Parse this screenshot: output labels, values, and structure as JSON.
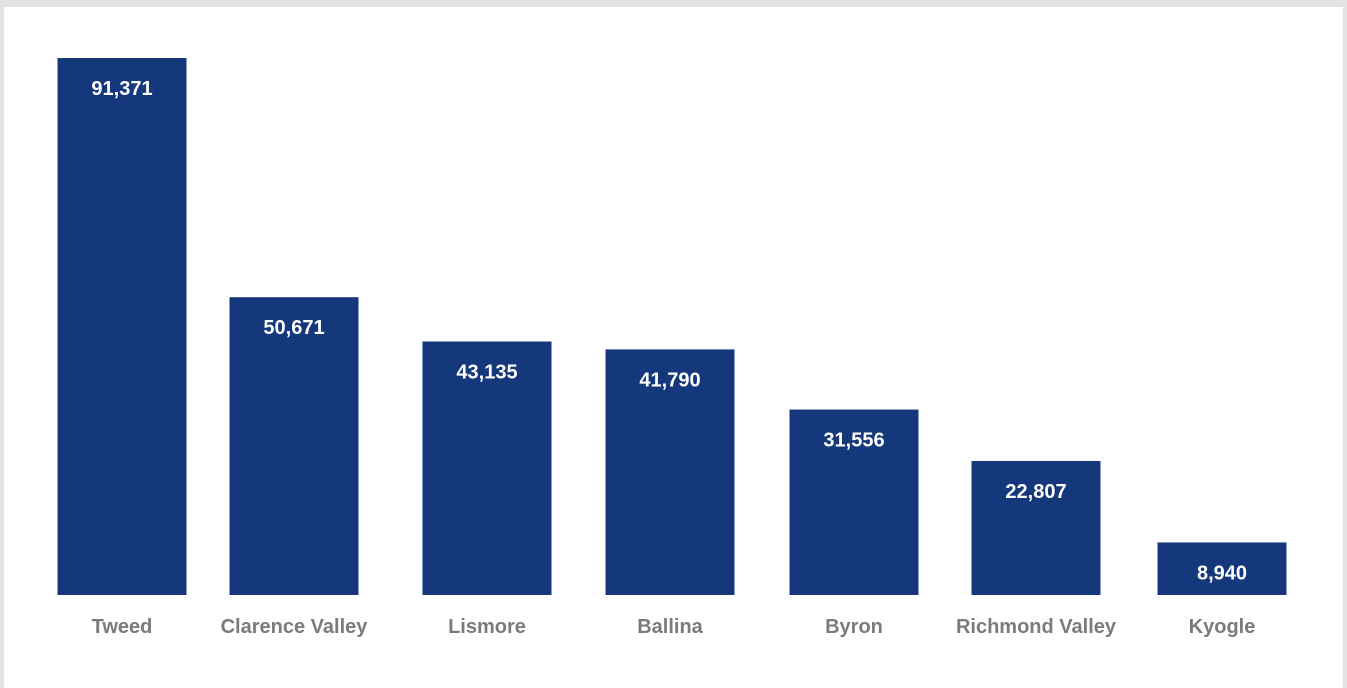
{
  "chart_data": {
    "type": "bar",
    "title": "",
    "xlabel": "",
    "ylabel": "",
    "categories": [
      "Tweed",
      "Clarence Valley",
      "Lismore",
      "Ballina",
      "Byron",
      "Richmond Valley",
      "Kyogle"
    ],
    "values": [
      91371,
      50671,
      43135,
      41790,
      31556,
      22807,
      8940
    ],
    "value_labels": [
      "91,371",
      "50,671",
      "43,135",
      "41,790",
      "31,556",
      "22,807",
      "8,940"
    ],
    "ylim": [
      0,
      91371
    ],
    "grid": false,
    "legend": "none",
    "colors": {
      "bar": "#15387c",
      "value_text": "#ffffff",
      "category_text": "#7b7b7b",
      "background": "#ffffff",
      "border": "#e3e3e3"
    }
  }
}
